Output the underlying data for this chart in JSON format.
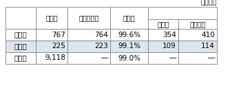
{
  "caption": "（社数）",
  "header_row1": [
    "　",
    "調査数",
    "回答企業数",
    "回答率",
    "",
    ""
  ],
  "header_row2_sub": [
    "製造業",
    "非製造業"
  ],
  "rows": [
    {
      "label": "中　国",
      "s1": "767",
      "s2": "764",
      "s3": "99.6%",
      "s4": "354",
      "s5": "410",
      "highlight": false
    },
    {
      "label": "広　島",
      "s1": "225",
      "s2": "223",
      "s3": "99.1%",
      "s4": "109",
      "s5": "114",
      "highlight": true
    },
    {
      "label": "全　国",
      "s1": "9,118",
      "s2": "―",
      "s3": "99.0%",
      "s4": "―",
      "s5": "―",
      "highlight": false
    }
  ],
  "highlight_color": "#dce6f1",
  "border_color": "#7f7f7f",
  "white": "#ffffff",
  "text_color": "#000000",
  "figsize": [
    3.5,
    1.31
  ],
  "dpi": 100
}
